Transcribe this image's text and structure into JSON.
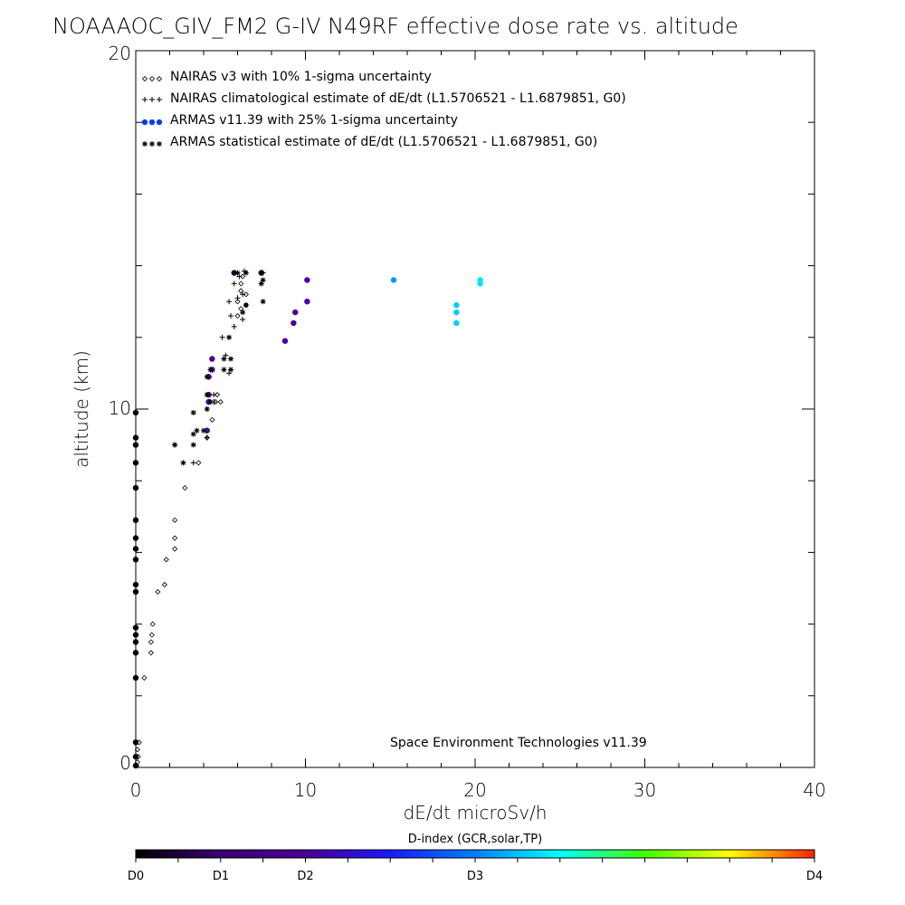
{
  "colors": {
    "background": "#ffffff",
    "axes": "#000000",
    "d0": "#000000",
    "d1": "#4b0082",
    "d2": "#0000ff",
    "d3": "#00ffff",
    "d4": "#ff0000"
  },
  "chart_data": {
    "type": "scatter",
    "title": "NOAAAOC_GIV_FM2 G-IV   N49RF  effective dose rate vs. altitude",
    "xlabel": "dE/dt microSv/h",
    "ylabel": "altitude (km)",
    "xlim": [
      0,
      40
    ],
    "ylim": [
      0,
      20
    ],
    "xticks": [
      0,
      10,
      20,
      30,
      40
    ],
    "yticks": [
      0,
      10,
      20
    ],
    "grid": false,
    "legend_position": "top-left",
    "legend": [
      {
        "marker": "diamond",
        "text": "NAIRAS v3 with 10% 1-sigma uncertainty"
      },
      {
        "marker": "plus",
        "text": "NAIRAS climatological estimate of dE/dt (L1.5706521 - L1.6879851, G0)"
      },
      {
        "marker": "filled-circle",
        "text": "ARMAS v11.39 with 25% 1-sigma uncertainty"
      },
      {
        "marker": "asterisk",
        "text": "ARMAS statistical estimate of dE/dt (L1.5706521 - L1.6879851, G0)"
      }
    ],
    "annotation": "Space Environment Technologies v11.39",
    "colorbar": {
      "title": "D-index (GCR,solar,TP)",
      "labels": [
        "D0",
        "D1",
        "D2",
        "D3",
        "D4"
      ]
    },
    "series": [
      {
        "name": "NAIRAS v3 with 10% 1-sigma uncertainty",
        "marker": "diamond",
        "points": [
          [
            0.05,
            0.05
          ],
          [
            0.1,
            0.15
          ],
          [
            0.15,
            0.3
          ],
          [
            0.1,
            0.5
          ],
          [
            0.2,
            0.7
          ],
          [
            0.5,
            2.5
          ],
          [
            0.9,
            3.2
          ],
          [
            0.9,
            3.5
          ],
          [
            0.95,
            3.7
          ],
          [
            1.0,
            4.0
          ],
          [
            1.3,
            4.9
          ],
          [
            1.7,
            5.1
          ],
          [
            1.8,
            5.8
          ],
          [
            2.3,
            6.1
          ],
          [
            2.3,
            6.4
          ],
          [
            2.3,
            6.9
          ],
          [
            2.9,
            7.8
          ],
          [
            3.7,
            8.5
          ],
          [
            4.2,
            9.2
          ],
          [
            4.5,
            9.7
          ],
          [
            4.7,
            10.2
          ],
          [
            5.0,
            10.2
          ],
          [
            4.8,
            10.4
          ],
          [
            6.0,
            12.6
          ],
          [
            6.2,
            12.8
          ],
          [
            6.5,
            12.9
          ],
          [
            6.0,
            13.0
          ],
          [
            6.2,
            13.3
          ],
          [
            6.5,
            13.2
          ],
          [
            6.2,
            13.5
          ],
          [
            6.3,
            13.7
          ]
        ]
      },
      {
        "name": "NAIRAS climatological estimate of dE/dt",
        "marker": "plus",
        "points": [
          [
            2.3,
            9.0
          ],
          [
            3.4,
            8.5
          ],
          [
            4.2,
            9.2
          ],
          [
            4.2,
            10.0
          ],
          [
            4.6,
            10.2
          ],
          [
            4.6,
            10.4
          ],
          [
            4.3,
            10.9
          ],
          [
            5.3,
            11.5
          ],
          [
            5.5,
            11.0
          ],
          [
            5.1,
            12.0
          ],
          [
            5.8,
            12.3
          ],
          [
            5.6,
            12.6
          ],
          [
            6.3,
            12.5
          ],
          [
            5.5,
            13.0
          ],
          [
            6.0,
            13.1
          ],
          [
            6.3,
            13.2
          ],
          [
            5.8,
            13.5
          ],
          [
            6.1,
            13.7
          ],
          [
            6.4,
            13.85
          ],
          [
            7.5,
            13.8
          ]
        ]
      },
      {
        "name": "ARMAS v11.39 with 25% 1-sigma uncertainty",
        "marker": "filled-circle",
        "points": [
          {
            "x": 0.0,
            "y": 0.05,
            "d": 0
          },
          {
            "x": 0.0,
            "y": 0.3,
            "d": 0
          },
          {
            "x": 0.0,
            "y": 0.7,
            "d": 0
          },
          {
            "x": 0.0,
            "y": 2.5,
            "d": 0
          },
          {
            "x": 0.0,
            "y": 3.2,
            "d": 0
          },
          {
            "x": 0.0,
            "y": 3.5,
            "d": 0
          },
          {
            "x": 0.0,
            "y": 3.7,
            "d": 0
          },
          {
            "x": 0.0,
            "y": 3.9,
            "d": 0
          },
          {
            "x": 0.0,
            "y": 4.9,
            "d": 0
          },
          {
            "x": 0.0,
            "y": 5.1,
            "d": 0
          },
          {
            "x": 0.0,
            "y": 5.8,
            "d": 0
          },
          {
            "x": 0.0,
            "y": 6.1,
            "d": 0
          },
          {
            "x": 0.0,
            "y": 6.4,
            "d": 0
          },
          {
            "x": 0.0,
            "y": 6.9,
            "d": 0
          },
          {
            "x": 0.0,
            "y": 7.8,
            "d": 0
          },
          {
            "x": 0.0,
            "y": 8.5,
            "d": 0
          },
          {
            "x": 0.0,
            "y": 9.0,
            "d": 0
          },
          {
            "x": 0.0,
            "y": 9.2,
            "d": 0
          },
          {
            "x": 0.0,
            "y": 9.9,
            "d": 0
          },
          {
            "x": 4.2,
            "y": 9.4,
            "d": 0.9
          },
          {
            "x": 4.3,
            "y": 10.2,
            "d": 0.9
          },
          {
            "x": 4.3,
            "y": 10.4,
            "d": 0.9
          },
          {
            "x": 4.3,
            "y": 10.9,
            "d": 0.9
          },
          {
            "x": 4.5,
            "y": 11.1,
            "d": 0.9
          },
          {
            "x": 4.5,
            "y": 11.4,
            "d": 0.9
          },
          {
            "x": 5.8,
            "y": 13.8,
            "d": 0.2
          },
          {
            "x": 7.4,
            "y": 13.8,
            "d": 0.2
          },
          {
            "x": 8.8,
            "y": 11.9,
            "d": 1.0
          },
          {
            "x": 9.3,
            "y": 12.4,
            "d": 1.0
          },
          {
            "x": 9.4,
            "y": 12.7,
            "d": 1.0
          },
          {
            "x": 10.1,
            "y": 13.0,
            "d": 1.1
          },
          {
            "x": 10.1,
            "y": 13.6,
            "d": 1.1
          },
          {
            "x": 15.2,
            "y": 13.6,
            "d": 2.1
          },
          {
            "x": 18.9,
            "y": 12.4,
            "d": 2.3
          },
          {
            "x": 18.9,
            "y": 12.7,
            "d": 2.3
          },
          {
            "x": 18.9,
            "y": 12.9,
            "d": 2.3
          },
          {
            "x": 20.3,
            "y": 13.5,
            "d": 2.4
          },
          {
            "x": 20.3,
            "y": 13.6,
            "d": 2.4
          }
        ]
      },
      {
        "name": "ARMAS statistical estimate of dE/dt",
        "marker": "asterisk",
        "points": [
          [
            2.3,
            9.0
          ],
          [
            2.8,
            8.5
          ],
          [
            3.4,
            9.0
          ],
          [
            3.4,
            9.3
          ],
          [
            3.4,
            9.9
          ],
          [
            3.6,
            9.4
          ],
          [
            4.0,
            9.4
          ],
          [
            4.2,
            10.0
          ],
          [
            4.2,
            10.4
          ],
          [
            4.4,
            10.2
          ],
          [
            4.2,
            10.9
          ],
          [
            4.4,
            11.1
          ],
          [
            5.2,
            11.1
          ],
          [
            5.6,
            11.1
          ],
          [
            5.2,
            11.4
          ],
          [
            5.6,
            11.4
          ],
          [
            5.5,
            12.0
          ],
          [
            6.0,
            13.8
          ],
          [
            6.5,
            13.8
          ],
          [
            7.4,
            13.8
          ],
          [
            7.5,
            13.6
          ],
          [
            7.4,
            13.5
          ],
          [
            7.5,
            13.0
          ],
          [
            6.3,
            12.7
          ],
          [
            6.5,
            12.9
          ]
        ]
      }
    ]
  }
}
